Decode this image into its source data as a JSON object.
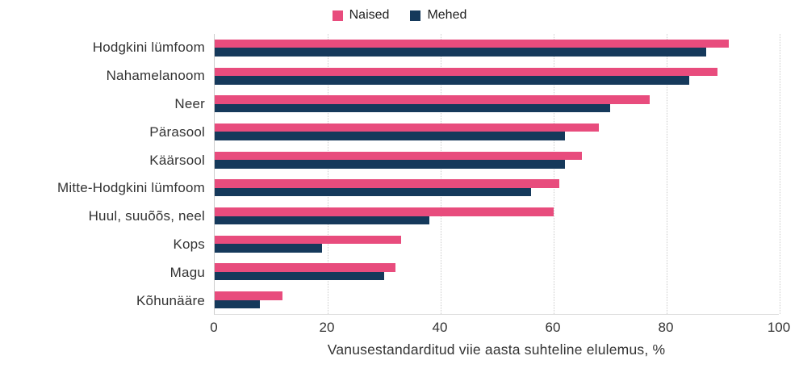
{
  "legend": {
    "items": [
      {
        "label": "Naised",
        "color": "#e84c7d"
      },
      {
        "label": "Mehed",
        "color": "#15395b"
      }
    ]
  },
  "chart_data": {
    "type": "bar",
    "orientation": "horizontal",
    "title": "",
    "xlabel": "Vanusestandarditud viie aasta suhteline elulemus, %",
    "ylabel": "",
    "xlim": [
      0,
      100
    ],
    "xticks": [
      0,
      20,
      40,
      60,
      80,
      100
    ],
    "grid": "vertical-dotted",
    "legend_position": "top-center",
    "categories": [
      "Hodgkini lümfoom",
      "Nahamelanoom",
      "Neer",
      "Pärasool",
      "Käärsool",
      "Mitte-Hodgkini lümfoom",
      "Huul, suuõõs, neel",
      "Kops",
      "Magu",
      "Kõhunääre"
    ],
    "series": [
      {
        "name": "Naised",
        "color": "#e84c7d",
        "values": [
          91,
          89,
          77,
          68,
          65,
          61,
          60,
          33,
          32,
          12
        ]
      },
      {
        "name": "Mehed",
        "color": "#15395b",
        "values": [
          87,
          84,
          70,
          62,
          62,
          56,
          38,
          19,
          30,
          8
        ]
      }
    ],
    "colors": {
      "grid": "#cccccc",
      "axis": "#cccccc",
      "text": "#333333"
    }
  }
}
